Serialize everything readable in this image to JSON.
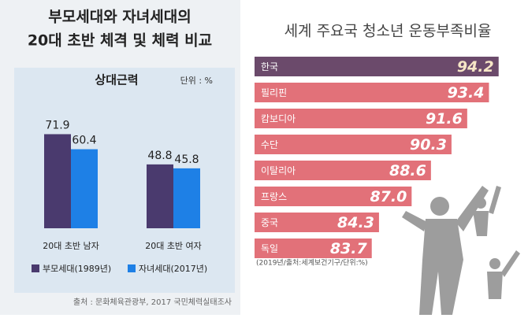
{
  "chart_data": [
    {
      "type": "bar",
      "title": [
        "부모세대와 자녀세대의",
        "20대 초반 체격 및 체력 비교"
      ],
      "subtitle": "상대근력",
      "unit": "단위 : %",
      "source": "출처 : 문화체육관광부, 2017 국민체력실태조사",
      "categories": [
        "20대 초반 남자",
        "20대 초반 여자"
      ],
      "series": [
        {
          "name": "부모세대(1989년)",
          "color": "#4a3a6e",
          "values": [
            71.9,
            48.8
          ]
        },
        {
          "name": "자녀세대(2017년)",
          "color": "#1e80e6",
          "values": [
            60.4,
            45.8
          ]
        }
      ],
      "ylim": [
        0,
        80
      ]
    },
    {
      "type": "barh",
      "title": "세계 주요국 청소년 운동부족비율",
      "note": "(2019년/출처:세계보건기구/단위:%)",
      "categories": [
        "한국",
        "필리핀",
        "캄보디아",
        "수단",
        "이탈리아",
        "프랑스",
        "중국",
        "독일"
      ],
      "values": [
        94.2,
        93.4,
        91.6,
        90.3,
        88.6,
        87.0,
        84.3,
        83.7
      ],
      "value_labels": [
        "94.2",
        "93.4",
        "91.6",
        "90.3",
        "88.6",
        "87.0",
        "84.3",
        "83.7"
      ],
      "colors": [
        "#6b4a6b",
        "#e27179",
        "#e27179",
        "#e27179",
        "#e27179",
        "#e27179",
        "#e27179",
        "#e27179"
      ],
      "xlim": [
        74,
        95
      ]
    }
  ]
}
